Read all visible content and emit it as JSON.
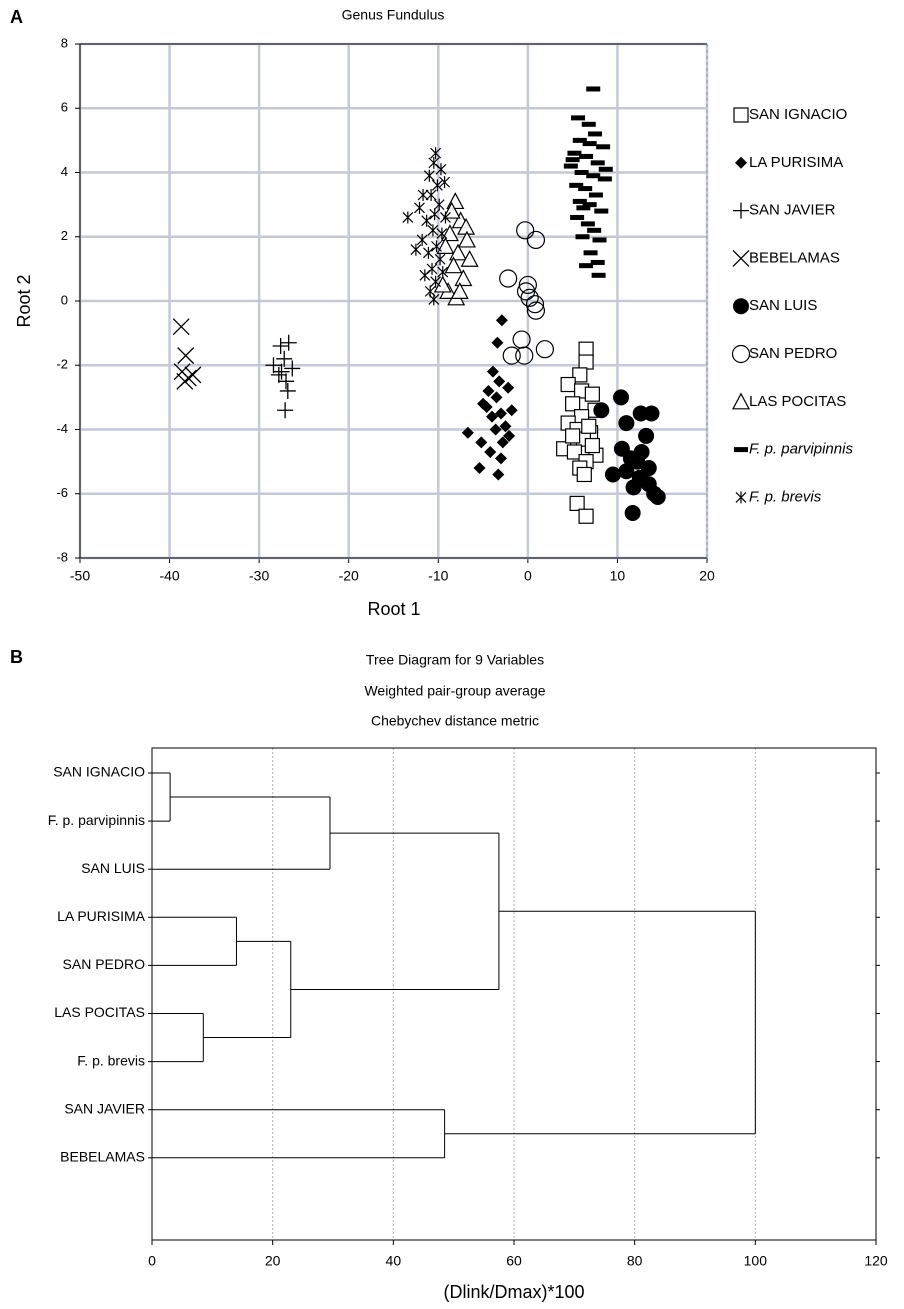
{
  "chart_data": [
    {
      "type": "scatter",
      "panel_label": "A",
      "title": "Genus Fundulus",
      "xlabel": "Root 1",
      "ylabel": "Root 2",
      "xlim": [
        -50,
        20
      ],
      "ylim": [
        -8,
        8
      ],
      "xticks": [
        -50,
        -40,
        -30,
        -20,
        -10,
        0,
        10,
        20
      ],
      "yticks": [
        -8,
        -6,
        -4,
        -2,
        0,
        2,
        4,
        6,
        8
      ],
      "grid": true,
      "legend": "right",
      "series": [
        {
          "name": "SAN IGNACIO",
          "marker": "square",
          "color": "#000000",
          "x": [
            6.5,
            6.5,
            5.8,
            4.5,
            6,
            7.2,
            5,
            7.5,
            6,
            4.5,
            5.5,
            7,
            6.2,
            4,
            5.2,
            7.6,
            6.5,
            5.8,
            6.3,
            5.5,
            6.5,
            7.2,
            5,
            6.8
          ],
          "y": [
            -1.5,
            -1.9,
            -2.3,
            -2.6,
            -2.8,
            -2.9,
            -3.2,
            -3.4,
            -3.6,
            -3.8,
            -4,
            -4.1,
            -4.3,
            -4.6,
            -4.7,
            -4.8,
            -5,
            -5.2,
            -5.4,
            -6.3,
            -6.7,
            -4.5,
            -4.2,
            -3.9
          ]
        },
        {
          "name": "LA PURISIMA",
          "marker": "diamond",
          "color": "#000000",
          "x": [
            -2.9,
            -3.4,
            -3.9,
            -3.2,
            -4.4,
            -2.2,
            -3.5,
            -5,
            -1.8,
            -3,
            -4,
            -2.5,
            -6.7,
            -3.6,
            -5.2,
            -2.8,
            -4.2,
            -3,
            -5.4,
            -3.3,
            -4.6,
            -2.1
          ],
          "y": [
            -0.6,
            -1.3,
            -2.2,
            -2.5,
            -2.8,
            -2.7,
            -3,
            -3.2,
            -3.4,
            -3.5,
            -3.6,
            -3.9,
            -4.1,
            -4,
            -4.4,
            -4.4,
            -4.7,
            -4.9,
            -5.2,
            -5.4,
            -3.3,
            -4.2
          ]
        },
        {
          "name": "SAN JAVIER",
          "marker": "plus",
          "color": "#000000",
          "x": [
            -26.7,
            -27.6,
            -27.2,
            -28.4,
            -26.3,
            -27.5,
            -27,
            -26.8,
            -27.1,
            -27.8
          ],
          "y": [
            -1.3,
            -1.4,
            -1.8,
            -2,
            -2.1,
            -2.2,
            -2.5,
            -2.8,
            -3.4,
            -2.3
          ]
        },
        {
          "name": "BEBELAMAS",
          "marker": "x",
          "color": "#000000",
          "x": [
            -38.7,
            -38.2,
            -38.6,
            -37.4,
            -38.3,
            -37.9
          ],
          "y": [
            -0.8,
            -1.7,
            -2.2,
            -2.3,
            -2.5,
            -2.4
          ]
        },
        {
          "name": "SAN LUIS",
          "marker": "circle",
          "color": "#000000",
          "x": [
            10.4,
            8.2,
            13.8,
            12.6,
            11,
            10.5,
            13.2,
            11.5,
            12.7,
            9.5,
            11,
            12.5,
            13.5,
            11.8,
            13.5,
            14.1,
            14.5,
            11.7,
            12.2
          ],
          "y": [
            -3,
            -3.4,
            -3.5,
            -3.5,
            -3.8,
            -4.6,
            -4.2,
            -4.9,
            -4.7,
            -5.4,
            -5.3,
            -5.5,
            -5.2,
            -5.8,
            -5.7,
            -6,
            -6.1,
            -6.6,
            -5
          ]
        },
        {
          "name": "SAN PEDRO",
          "marker": "circle-open",
          "color": "#000000",
          "x": [
            -0.3,
            0.9,
            -2.2,
            0,
            0.2,
            0.8,
            0.9,
            -0.2,
            -0.7,
            -1.8,
            -0.4,
            1.9
          ],
          "y": [
            2.2,
            1.9,
            0.7,
            0.5,
            0.1,
            -0.1,
            -0.3,
            0.3,
            -1.2,
            -1.7,
            -1.7,
            -1.5
          ]
        },
        {
          "name": "LAS POCITAS",
          "marker": "triangle",
          "color": "#000000",
          "x": [
            -8.1,
            -7.5,
            -8.7,
            -6.9,
            -9.2,
            -7.8,
            -8.3,
            -6.5,
            -7.2,
            -8.9,
            -8,
            -9.5,
            -7.6,
            -6.8,
            -8.5
          ],
          "y": [
            3.1,
            2.5,
            2.1,
            2.3,
            1.7,
            1.5,
            1.1,
            1.3,
            0.7,
            0.3,
            0.1,
            0.5,
            0.3,
            1.9,
            2.8
          ]
        },
        {
          "name": "F. p. parvipinnis",
          "marker": "dash",
          "color": "#000000",
          "italic": true,
          "x": [
            7.3,
            5.6,
            6.8,
            7.5,
            5.8,
            6.9,
            8.4,
            5.2,
            6.5,
            7.8,
            4.8,
            6,
            7.3,
            8.6,
            5.4,
            6.4,
            7.6,
            5.8,
            6.9,
            8.2,
            5.5,
            6.7,
            7.4,
            6.1,
            8,
            7,
            6.5,
            7.8,
            7.9,
            5,
            8.7,
            6.2
          ],
          "y": [
            6.6,
            5.7,
            5.5,
            5.2,
            5,
            4.9,
            4.8,
            4.6,
            4.5,
            4.3,
            4.2,
            4,
            3.9,
            3.8,
            3.6,
            3.5,
            3.3,
            3.1,
            3,
            2.8,
            2.6,
            2.4,
            2.2,
            2,
            1.9,
            1.5,
            1.1,
            1.2,
            0.8,
            4.4,
            4.1,
            2.9
          ]
        },
        {
          "name": "F. p. brevis",
          "marker": "asterisk",
          "color": "#000000",
          "italic": true,
          "x": [
            -10.3,
            -10.5,
            -9.7,
            -11,
            -10.1,
            -9.3,
            -10.8,
            -11.7,
            -9.9,
            -12.1,
            -10.4,
            -9.2,
            -11.3,
            -13.4,
            -10.6,
            -9.6,
            -11.8,
            -10.2,
            -11.1,
            -9.8,
            -10.7,
            -11.5,
            -10.3,
            -10.9,
            -10.5,
            -9.5,
            -12.5
          ],
          "y": [
            4.6,
            4.3,
            4.1,
            3.9,
            3.6,
            3.7,
            3.3,
            3.3,
            3,
            2.9,
            2.7,
            2.6,
            2.5,
            2.6,
            2.2,
            2.1,
            1.9,
            1.7,
            1.5,
            1.3,
            1,
            0.8,
            0.6,
            0.3,
            0.05,
            0.9,
            1.6
          ]
        }
      ]
    },
    {
      "type": "dendrogram",
      "panel_label": "B",
      "title": "Tree Diagram for 9   Variables",
      "subtitle": "Weighted pair-group average",
      "subtitle2": "Chebychev distance metric",
      "xlabel": "(Dlink/Dmax)*100",
      "xlim": [
        0,
        120
      ],
      "xticks": [
        0,
        20,
        40,
        60,
        80,
        100,
        120
      ],
      "grid": true,
      "tree": {
        "height": 100,
        "children": [
          {
            "height": 57.5,
            "children": [
              {
                "height": 29.5,
                "children": [
                  {
                    "height": 3,
                    "children": [
                      "SAN IGNACIO",
                      "F. p. parvipinnis"
                    ]
                  },
                  "SAN LUIS"
                ]
              },
              {
                "height": 23,
                "children": [
                  {
                    "height": 14,
                    "children": [
                      "LA PURISIMA",
                      "SAN PEDRO"
                    ]
                  },
                  {
                    "height": 8.5,
                    "children": [
                      "LAS POCITAS",
                      "F. p. brevis"
                    ]
                  }
                ]
              }
            ]
          },
          {
            "height": 48.5,
            "children": [
              "SAN JAVIER",
              "BEBELAMAS"
            ]
          }
        ]
      }
    }
  ]
}
